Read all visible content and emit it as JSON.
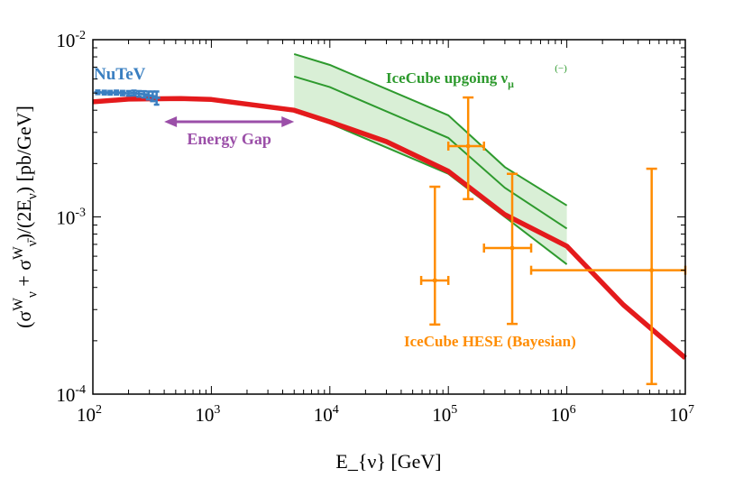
{
  "chart_data": {
    "type": "scatter",
    "xlabel": "E_{ν} [GeV]",
    "ylabel": "(σ^{W}_{ν} + σ^{W}_{ν̄})/(2E_{ν}) [pb/GeV]",
    "xscale": "log",
    "yscale": "log",
    "xlim": [
      100,
      10000000
    ],
    "ylim": [
      0.0001,
      0.01
    ],
    "grid": false,
    "xticks": [
      {
        "base": "10",
        "exp": "2"
      },
      {
        "base": "10",
        "exp": "3"
      },
      {
        "base": "10",
        "exp": "4"
      },
      {
        "base": "10",
        "exp": "5"
      },
      {
        "base": "10",
        "exp": "6"
      },
      {
        "base": "10",
        "exp": "7"
      }
    ],
    "yticks": [
      {
        "base": "10",
        "exp": "-2"
      },
      {
        "base": "10",
        "exp": "-3"
      },
      {
        "base": "10",
        "exp": "-4"
      }
    ],
    "theory_curve": {
      "color": "#e41a1c",
      "x": [
        100,
        200,
        550,
        1000,
        5000,
        10000,
        30000,
        100000,
        300000,
        1000000,
        3000000,
        10000000
      ],
      "y": [
        0.00446,
        0.00462,
        0.00466,
        0.0046,
        0.004,
        0.00344,
        0.00266,
        0.00181,
        0.00103,
        0.000684,
        0.000319,
        0.00016
      ]
    },
    "icecube_upgoing": {
      "label": "IceCube upgoing ν_{μ}",
      "label_accent": "(−)",
      "color": "#2e9a2e",
      "fill": "#d9efd6",
      "x": [
        5000,
        10000,
        100000,
        300000,
        1000000
      ],
      "upper": [
        0.0083,
        0.0072,
        0.00374,
        0.00191,
        0.00116
      ],
      "central": [
        0.0062,
        0.0054,
        0.00279,
        0.00146,
        0.00086
      ],
      "lower": [
        0.00392,
        0.00337,
        0.00175,
        0.001,
        0.00054
      ]
    },
    "icecube_hese": {
      "label": "IceCube HESE (Bayesian)",
      "color": "#ff8c00",
      "points": [
        {
          "x": 77000,
          "xlo": 59000,
          "xhi": 100000,
          "y": 0.000438,
          "ylo": 0.000247,
          "yhi": 0.00148
        },
        {
          "x": 147000,
          "xlo": 100000,
          "xhi": 200000,
          "y": 0.00251,
          "ylo": 0.00126,
          "yhi": 0.00472
        },
        {
          "x": 346000,
          "xlo": 200000,
          "xhi": 500000,
          "y": 0.000667,
          "ylo": 0.000249,
          "yhi": 0.00175
        },
        {
          "x": 5200000,
          "xlo": 500000,
          "xhi": 10000000,
          "y": 0.0005,
          "ylo": 0.000114,
          "yhi": 0.00187
        }
      ]
    },
    "nutev": {
      "label": "NuTeV",
      "color": "#3a7fc1",
      "points": [
        {
          "x": 110,
          "y": 0.00505,
          "err": 0.00012
        },
        {
          "x": 125,
          "y": 0.00503,
          "err": 0.00012
        },
        {
          "x": 140,
          "y": 0.00502,
          "err": 0.00012
        },
        {
          "x": 158,
          "y": 0.00503,
          "err": 0.00013
        },
        {
          "x": 178,
          "y": 0.005,
          "err": 0.00014
        },
        {
          "x": 200,
          "y": 0.00498,
          "err": 0.00015
        },
        {
          "x": 222,
          "y": 0.005,
          "err": 0.00016
        },
        {
          "x": 245,
          "y": 0.00495,
          "err": 0.00018
        },
        {
          "x": 270,
          "y": 0.00492,
          "err": 0.0002
        },
        {
          "x": 295,
          "y": 0.00485,
          "err": 0.00025
        },
        {
          "x": 320,
          "y": 0.0048,
          "err": 0.0003
        },
        {
          "x": 345,
          "y": 0.0047,
          "err": 0.0004
        }
      ]
    },
    "energy_gap": {
      "label": "Energy Gap",
      "color": "#9b4fa8",
      "x_from": 400,
      "x_to": 5000
    }
  }
}
